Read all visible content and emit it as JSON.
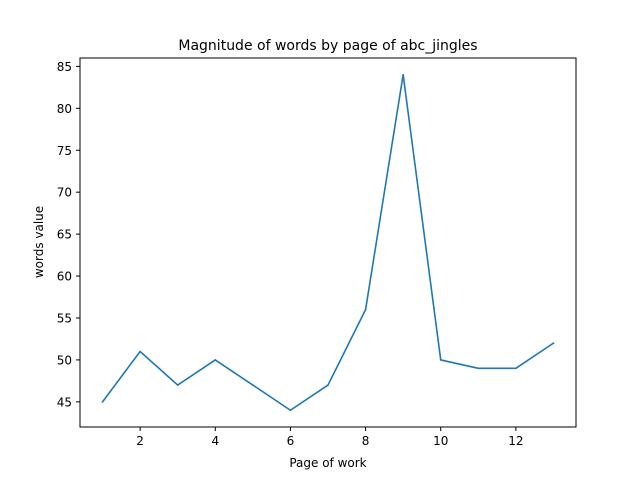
{
  "chart_data": {
    "type": "line",
    "title": "Magnitude of words by page of abc_jingles",
    "xlabel": "Page of work",
    "ylabel": "words value",
    "x": [
      1,
      2,
      3,
      4,
      5,
      6,
      7,
      8,
      9,
      10,
      11,
      12,
      13
    ],
    "series": [
      {
        "values": [
          45,
          51,
          47,
          50,
          47,
          44,
          47,
          56,
          84,
          50,
          49,
          49,
          52
        ]
      }
    ],
    "xlim": [
      0.4,
      13.6
    ],
    "ylim": [
      42,
      86
    ],
    "xticks": [
      2,
      4,
      6,
      8,
      10,
      12
    ],
    "yticks": [
      45,
      50,
      55,
      60,
      65,
      70,
      75,
      80,
      85
    ],
    "grid": false,
    "legend": "none",
    "line_color": "#1f77b4"
  }
}
